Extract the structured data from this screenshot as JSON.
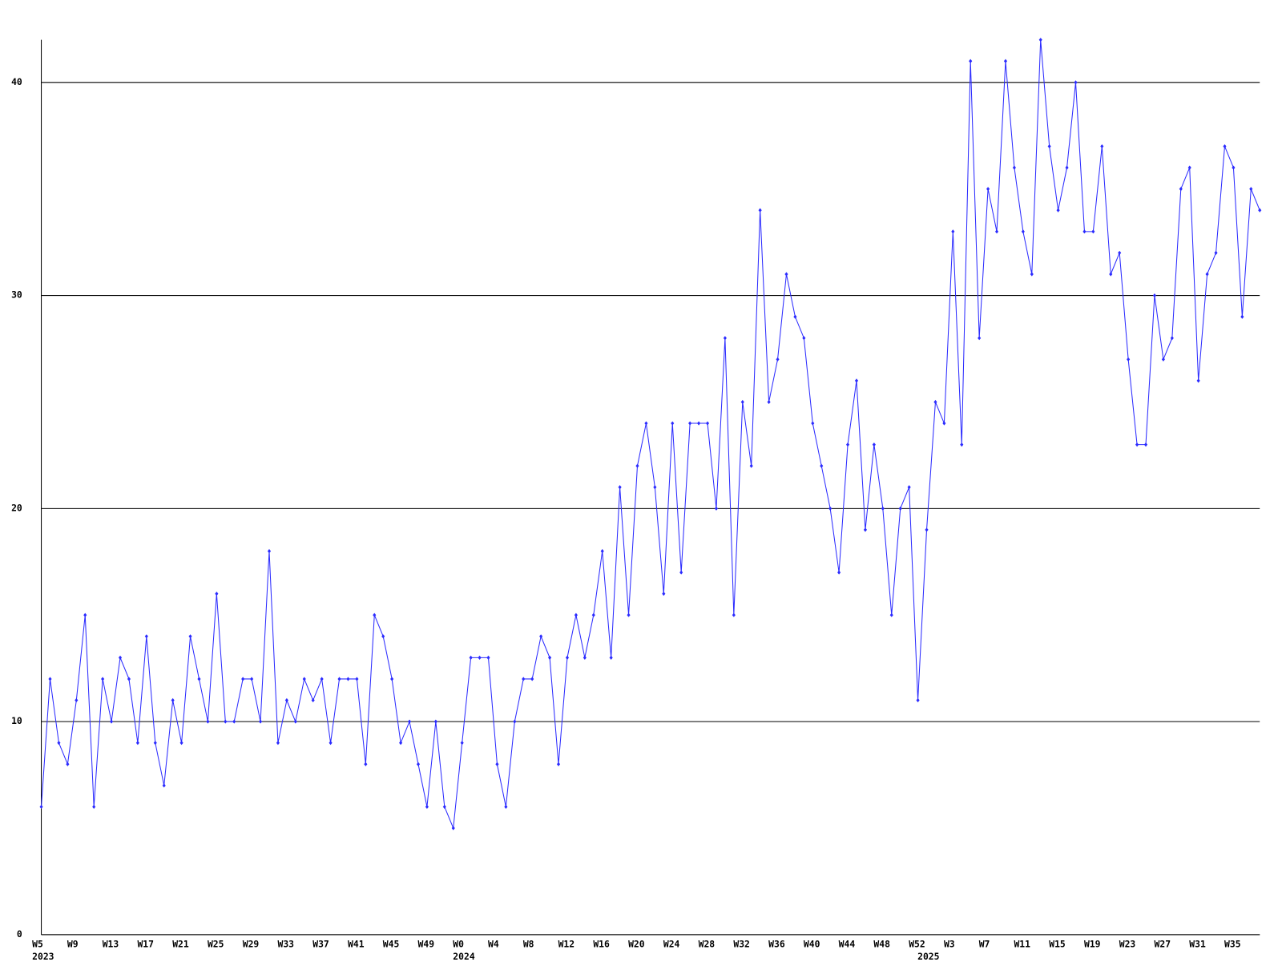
{
  "chart_data": {
    "type": "line",
    "categories": [
      "W5",
      null,
      null,
      null,
      "W9",
      null,
      null,
      null,
      "W13",
      null,
      null,
      null,
      "W17",
      null,
      null,
      null,
      "W21",
      null,
      null,
      null,
      "W25",
      null,
      null,
      null,
      "W29",
      null,
      null,
      null,
      "W33",
      null,
      null,
      null,
      "W37",
      null,
      null,
      null,
      "W41",
      null,
      null,
      null,
      "W45",
      null,
      null,
      null,
      "W49",
      null,
      null,
      null,
      "W0",
      null,
      null,
      null,
      "W4",
      null,
      null,
      null,
      "W8",
      null,
      null,
      null,
      "W12",
      null,
      null,
      null,
      "W16",
      null,
      null,
      null,
      "W20",
      null,
      null,
      null,
      "W24",
      null,
      null,
      null,
      "W28",
      null,
      null,
      null,
      "W32",
      null,
      null,
      null,
      "W36",
      null,
      null,
      null,
      "W40",
      null,
      null,
      null,
      "W44",
      null,
      null,
      null,
      "W48",
      null,
      null,
      null,
      "W52",
      null,
      null,
      null,
      "W3",
      null,
      null,
      null,
      "W7",
      null,
      null,
      null,
      "W11",
      null,
      null,
      null,
      "W15",
      null,
      null,
      null,
      "W19",
      null,
      null,
      null,
      "W23",
      null,
      null,
      null,
      "W27",
      null,
      null,
      null,
      "W31",
      null,
      null,
      null,
      "W35",
      null,
      null,
      null
    ],
    "category_years": [
      "2023",
      null,
      null,
      null,
      null,
      null,
      null,
      null,
      null,
      null,
      null,
      null,
      null,
      null,
      null,
      null,
      null,
      null,
      null,
      null,
      null,
      null,
      null,
      null,
      null,
      null,
      null,
      null,
      null,
      null,
      null,
      null,
      null,
      null,
      null,
      null,
      null,
      null,
      null,
      null,
      null,
      null,
      null,
      null,
      null,
      null,
      null,
      null,
      "2024",
      null,
      null,
      null,
      null,
      null,
      null,
      null,
      null,
      null,
      null,
      null,
      null,
      null,
      null,
      null,
      null,
      null,
      null,
      null,
      null,
      null,
      null,
      null,
      null,
      null,
      null,
      null,
      null,
      null,
      null,
      null,
      null,
      null,
      null,
      null,
      null,
      null,
      null,
      null,
      null,
      null,
      null,
      null,
      null,
      null,
      null,
      null,
      null,
      null,
      null,
      null,
      null,
      "2025",
      null,
      null,
      null,
      null,
      null,
      null,
      null,
      null,
      null,
      null,
      null,
      null,
      null,
      null,
      null,
      null,
      null,
      null,
      null,
      null,
      null,
      null,
      null,
      null,
      null,
      null,
      null,
      null,
      null,
      null,
      null,
      null,
      null,
      null,
      null,
      null,
      null,
      null
    ],
    "series": [
      {
        "color": "#2b2bff",
        "values": [
          6,
          12,
          9,
          8,
          11,
          15,
          6,
          12,
          10,
          13,
          12,
          9,
          14,
          9,
          7,
          11,
          9,
          14,
          12,
          10,
          16,
          10,
          10,
          12,
          12,
          10,
          18,
          9,
          11,
          10,
          12,
          11,
          12,
          9,
          12,
          12,
          12,
          8,
          15,
          14,
          12,
          9,
          10,
          8,
          6,
          10,
          6,
          5,
          9,
          13,
          13,
          13,
          8,
          6,
          10,
          12,
          12,
          14,
          13,
          8,
          13,
          15,
          13,
          15,
          18,
          13,
          21,
          15,
          22,
          24,
          21,
          16,
          24,
          17,
          24,
          24,
          24,
          20,
          28,
          15,
          25,
          22,
          34,
          25,
          27,
          31,
          29,
          28,
          24,
          22,
          20,
          17,
          23,
          26,
          19,
          23,
          20,
          15,
          20,
          21,
          11,
          19,
          25,
          24,
          33,
          23,
          41,
          28,
          35,
          33,
          41,
          36,
          33,
          31,
          42,
          37,
          34,
          36,
          40,
          33,
          33,
          37,
          31,
          32,
          27,
          23,
          23,
          30,
          27,
          28,
          35,
          36,
          26,
          31,
          32,
          37,
          36,
          29,
          35,
          34
        ]
      }
    ],
    "ylim": [
      0,
      42
    ],
    "yticks": [
      0,
      10,
      20,
      30,
      40
    ],
    "grid": true
  }
}
